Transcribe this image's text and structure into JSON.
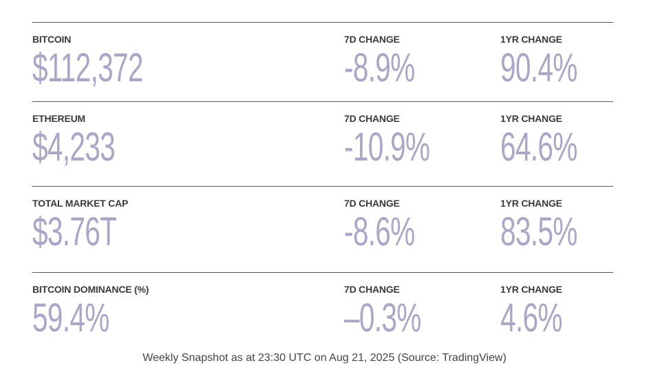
{
  "rows": [
    {
      "label": "BITCOIN",
      "value": "$112,372",
      "change_7d_label": "7D CHANGE",
      "change_7d": "-8.9%",
      "change_1yr_label": "1YR CHANGE",
      "change_1yr": "90.4%"
    },
    {
      "label": "ETHEREUM",
      "value": "$4,233",
      "change_7d_label": "7D CHANGE",
      "change_7d": "-10.9%",
      "change_1yr_label": "1YR CHANGE",
      "change_1yr": "64.6%"
    },
    {
      "label": "TOTAL MARKET CAP",
      "value": "$3.76T",
      "change_7d_label": "7D CHANGE",
      "change_7d": "-8.6%",
      "change_1yr_label": "1YR CHANGE",
      "change_1yr": "83.5%"
    },
    {
      "label": "BITCOIN DOMINANCE (%)",
      "value": "59.4%",
      "change_7d_label": "7D CHANGE",
      "change_7d": "–0.3%",
      "change_1yr_label": "1YR CHANGE",
      "change_1yr": "4.6%"
    }
  ],
  "footer": "Weekly Snapshot as at 23:30 UTC on Aug 21, 2025 (Source: TradingView)"
}
